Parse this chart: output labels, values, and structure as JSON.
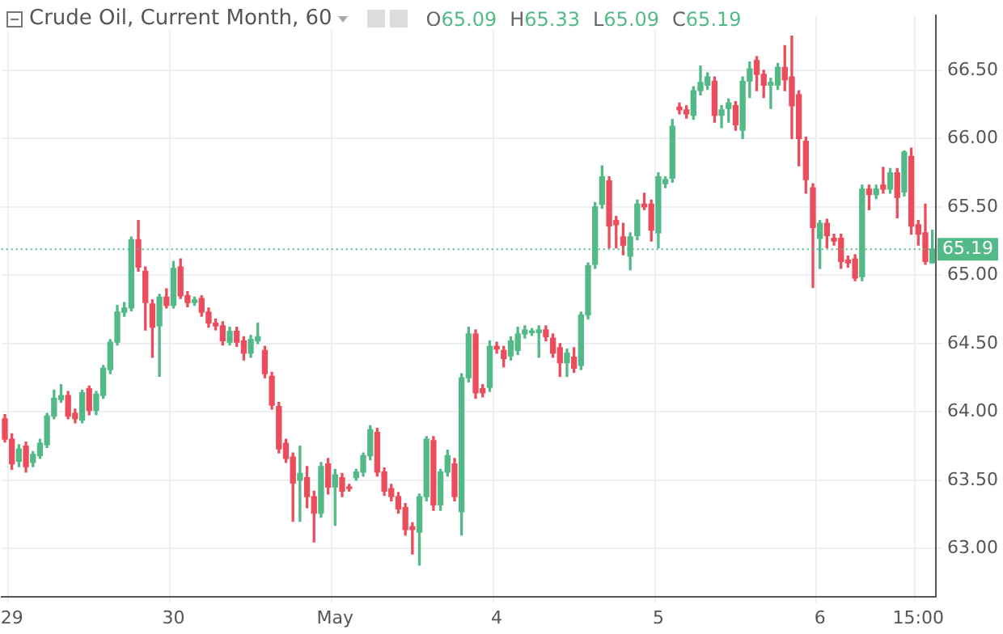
{
  "chart_data": {
    "type": "candlestick",
    "title": "Crude Oil, Current Month, 60",
    "annotations": [
      "O65.09",
      "H65.33",
      "L65.09",
      "C65.19"
    ],
    "categories": [
      null,
      "29",
      null,
      null,
      null,
      null,
      null,
      null,
      null,
      null,
      null,
      null,
      null,
      null,
      null,
      null,
      null,
      null,
      null,
      null,
      null,
      null,
      null,
      null,
      "30",
      null,
      null,
      null,
      null,
      null,
      null,
      null,
      null,
      null,
      null,
      null,
      null,
      null,
      null,
      null,
      null,
      null,
      null,
      null,
      null,
      null,
      null,
      "May",
      null,
      null,
      null,
      null,
      null,
      null,
      null,
      null,
      null,
      null,
      null,
      null,
      null,
      null,
      null,
      null,
      null,
      null,
      null,
      null,
      null,
      null,
      "4",
      null,
      null,
      null,
      null,
      null,
      null,
      null,
      null,
      null,
      null,
      null,
      null,
      null,
      null,
      null,
      null,
      null,
      null,
      null,
      null,
      null,
      null,
      "5",
      null,
      null,
      null,
      null,
      null,
      null,
      null,
      null,
      null,
      null,
      null,
      null,
      null,
      null,
      null,
      null,
      null,
      null,
      null,
      null,
      null,
      null,
      "6",
      null,
      null,
      null,
      null,
      null,
      null,
      null,
      null,
      null,
      null,
      null,
      null,
      null,
      "15:00",
      null,
      null
    ],
    "ohlc": [
      [
        63.95,
        63.98,
        63.78,
        63.8
      ],
      [
        63.8,
        63.84,
        63.58,
        63.62
      ],
      [
        63.64,
        63.76,
        63.6,
        63.73
      ],
      [
        63.75,
        63.78,
        63.56,
        63.6
      ],
      [
        63.63,
        63.71,
        63.6,
        63.69
      ],
      [
        63.68,
        63.8,
        63.66,
        63.77
      ],
      [
        63.76,
        63.99,
        63.74,
        63.97
      ],
      [
        63.97,
        64.16,
        63.95,
        64.1
      ],
      [
        64.09,
        64.2,
        64.07,
        64.12
      ],
      [
        64.12,
        64.15,
        63.95,
        63.97
      ],
      [
        63.99,
        64.02,
        63.92,
        63.95
      ],
      [
        63.94,
        64.16,
        63.92,
        64.14
      ],
      [
        64.17,
        64.19,
        63.98,
        64.01
      ],
      [
        64.01,
        64.15,
        63.98,
        64.13
      ],
      [
        64.12,
        64.34,
        64.1,
        64.32
      ],
      [
        64.31,
        64.53,
        64.28,
        64.51
      ],
      [
        64.51,
        64.78,
        64.49,
        64.73
      ],
      [
        64.73,
        64.8,
        64.7,
        64.76
      ],
      [
        64.76,
        65.28,
        64.74,
        65.26
      ],
      [
        65.26,
        65.4,
        65.03,
        65.06
      ],
      [
        65.03,
        65.06,
        64.6,
        64.8
      ],
      [
        64.79,
        64.82,
        64.4,
        64.62
      ],
      [
        64.63,
        64.86,
        64.26,
        64.84
      ],
      [
        64.84,
        64.9,
        64.76,
        64.78
      ],
      [
        64.78,
        65.1,
        64.76,
        65.05
      ],
      [
        65.06,
        65.12,
        64.83,
        64.85
      ],
      [
        64.85,
        64.88,
        64.77,
        64.8
      ],
      [
        64.8,
        64.84,
        64.78,
        64.82
      ],
      [
        64.83,
        64.85,
        64.7,
        64.73
      ],
      [
        64.73,
        64.76,
        64.62,
        64.65
      ],
      [
        64.65,
        64.68,
        64.6,
        64.63
      ],
      [
        64.63,
        64.66,
        64.49,
        64.52
      ],
      [
        64.51,
        64.62,
        64.49,
        64.59
      ],
      [
        64.59,
        64.62,
        64.48,
        64.51
      ],
      [
        64.52,
        64.55,
        64.38,
        64.43
      ],
      [
        64.43,
        64.56,
        64.4,
        64.53
      ],
      [
        64.52,
        64.65,
        64.5,
        64.55
      ],
      [
        64.45,
        64.48,
        64.25,
        64.28
      ],
      [
        64.26,
        64.29,
        64.02,
        64.05
      ],
      [
        64.04,
        64.07,
        63.7,
        63.73
      ],
      [
        63.77,
        63.8,
        63.63,
        63.66
      ],
      [
        63.67,
        63.7,
        63.2,
        63.48
      ],
      [
        63.5,
        63.75,
        63.2,
        63.55
      ],
      [
        63.52,
        63.6,
        63.3,
        63.38
      ],
      [
        63.38,
        63.42,
        63.05,
        63.26
      ],
      [
        63.26,
        63.63,
        63.23,
        63.6
      ],
      [
        63.62,
        63.66,
        63.4,
        63.45
      ],
      [
        63.45,
        63.58,
        63.17,
        63.54
      ],
      [
        63.52,
        63.55,
        63.38,
        63.42
      ],
      [
        63.45,
        63.47,
        63.42,
        63.44
      ],
      [
        63.52,
        63.58,
        63.5,
        63.56
      ],
      [
        63.56,
        63.7,
        63.53,
        63.68
      ],
      [
        63.68,
        63.9,
        63.65,
        63.87
      ],
      [
        63.85,
        63.88,
        63.53,
        63.56
      ],
      [
        63.56,
        63.59,
        63.39,
        63.42
      ],
      [
        63.44,
        63.47,
        63.35,
        63.38
      ],
      [
        63.38,
        63.41,
        63.26,
        63.29
      ],
      [
        63.3,
        63.33,
        63.1,
        63.14
      ],
      [
        63.16,
        63.19,
        62.96,
        63.14
      ],
      [
        63.12,
        63.4,
        62.88,
        63.38
      ],
      [
        63.38,
        63.82,
        63.35,
        63.8
      ],
      [
        63.79,
        63.82,
        63.28,
        63.32
      ],
      [
        63.32,
        63.58,
        63.28,
        63.56
      ],
      [
        63.56,
        63.72,
        63.53,
        63.68
      ],
      [
        63.62,
        63.66,
        63.35,
        63.38
      ],
      [
        63.27,
        64.28,
        63.1,
        64.25
      ],
      [
        64.25,
        64.62,
        64.22,
        64.57
      ],
      [
        64.57,
        64.6,
        64.1,
        64.14
      ],
      [
        64.17,
        64.2,
        64.11,
        64.14
      ],
      [
        64.18,
        64.52,
        64.15,
        64.48
      ],
      [
        64.48,
        64.51,
        64.43,
        64.46
      ],
      [
        64.45,
        64.48,
        64.33,
        64.39
      ],
      [
        64.41,
        64.55,
        64.38,
        64.52
      ],
      [
        64.45,
        64.62,
        64.42,
        64.57
      ],
      [
        64.57,
        64.63,
        64.54,
        64.6
      ],
      [
        64.58,
        64.61,
        64.56,
        64.59
      ],
      [
        64.58,
        64.63,
        64.4,
        64.6
      ],
      [
        64.6,
        64.63,
        64.52,
        64.55
      ],
      [
        64.54,
        64.57,
        64.4,
        64.43
      ],
      [
        64.47,
        64.5,
        64.26,
        64.36
      ],
      [
        64.36,
        64.46,
        64.26,
        64.43
      ],
      [
        64.4,
        64.47,
        64.29,
        64.32
      ],
      [
        64.34,
        64.73,
        64.31,
        64.71
      ],
      [
        64.71,
        65.09,
        64.68,
        65.07
      ],
      [
        65.08,
        65.53,
        65.05,
        65.5
      ],
      [
        65.52,
        65.8,
        65.49,
        65.72
      ],
      [
        65.69,
        65.72,
        65.2,
        65.36
      ],
      [
        65.4,
        65.43,
        65.2,
        65.37
      ],
      [
        65.28,
        65.38,
        65.15,
        65.22
      ],
      [
        65.14,
        65.31,
        65.04,
        65.28
      ],
      [
        65.29,
        65.55,
        65.26,
        65.52
      ],
      [
        65.52,
        65.6,
        65.48,
        65.5
      ],
      [
        65.52,
        65.55,
        65.25,
        65.33
      ],
      [
        65.31,
        65.75,
        65.2,
        65.72
      ],
      [
        65.67,
        65.72,
        65.64,
        65.7
      ],
      [
        65.71,
        66.14,
        65.68,
        66.09
      ],
      [
        66.23,
        66.26,
        66.18,
        66.21
      ],
      [
        66.21,
        66.24,
        66.15,
        66.18
      ],
      [
        66.17,
        66.38,
        66.14,
        66.35
      ],
      [
        66.35,
        66.53,
        66.32,
        66.41
      ],
      [
        66.39,
        66.48,
        66.36,
        66.45
      ],
      [
        66.42,
        66.45,
        66.12,
        66.17
      ],
      [
        66.17,
        66.24,
        66.08,
        66.21
      ],
      [
        66.22,
        66.29,
        66.12,
        66.26
      ],
      [
        66.24,
        66.27,
        66.06,
        66.1
      ],
      [
        66.06,
        66.45,
        66.0,
        66.42
      ],
      [
        66.42,
        66.56,
        66.3,
        66.51
      ],
      [
        66.57,
        66.6,
        66.35,
        66.47
      ],
      [
        66.47,
        66.5,
        66.3,
        66.39
      ],
      [
        66.39,
        66.44,
        66.22,
        66.41
      ],
      [
        66.39,
        66.55,
        66.36,
        66.52
      ],
      [
        66.52,
        66.68,
        66.35,
        66.43
      ],
      [
        66.45,
        66.75,
        66.0,
        66.24
      ],
      [
        66.32,
        66.35,
        65.8,
        66.0
      ],
      [
        65.98,
        66.01,
        65.6,
        65.7
      ],
      [
        65.64,
        65.67,
        64.91,
        65.35
      ],
      [
        65.27,
        65.4,
        65.05,
        65.38
      ],
      [
        65.38,
        65.41,
        65.2,
        65.29
      ],
      [
        65.27,
        65.3,
        65.22,
        65.25
      ],
      [
        65.27,
        65.3,
        65.05,
        65.1
      ],
      [
        65.11,
        65.14,
        65.06,
        65.09
      ],
      [
        65.12,
        65.15,
        64.96,
        64.98
      ],
      [
        64.99,
        65.66,
        64.96,
        65.63
      ],
      [
        65.63,
        65.66,
        65.48,
        65.59
      ],
      [
        65.59,
        65.66,
        65.56,
        65.63
      ],
      [
        65.66,
        65.79,
        65.6,
        65.63
      ],
      [
        65.63,
        65.78,
        65.6,
        65.75
      ],
      [
        65.75,
        65.78,
        65.42,
        65.57
      ],
      [
        65.61,
        65.91,
        65.58,
        65.9
      ],
      [
        65.87,
        65.93,
        65.3,
        65.36
      ],
      [
        65.37,
        65.4,
        65.22,
        65.3
      ],
      [
        65.31,
        65.52,
        65.08,
        65.1
      ],
      [
        65.09,
        65.33,
        65.09,
        65.19
      ]
    ],
    "colors": [
      "#eb4d5c",
      "#eb4d5c",
      "#53b987",
      "#eb4d5c",
      "#53b987",
      "#53b987",
      "#53b987",
      "#53b987",
      "#53b987",
      "#eb4d5c",
      "#eb4d5c",
      "#53b987",
      "#eb4d5c",
      "#53b987",
      "#53b987",
      "#53b987",
      "#53b987",
      "#53b987",
      "#53b987",
      "#eb4d5c",
      "#eb4d5c",
      "#eb4d5c",
      "#53b987",
      "#eb4d5c",
      "#53b987",
      "#eb4d5c",
      "#eb4d5c",
      "#53b987",
      "#eb4d5c",
      "#eb4d5c",
      "#eb4d5c",
      "#eb4d5c",
      "#53b987",
      "#eb4d5c",
      "#eb4d5c",
      "#53b987",
      "#53b987",
      "#eb4d5c",
      "#eb4d5c",
      "#eb4d5c",
      "#eb4d5c",
      "#eb4d5c",
      "#53b987",
      "#eb4d5c",
      "#eb4d5c",
      "#53b987",
      "#eb4d5c",
      "#53b987",
      "#eb4d5c",
      "#eb4d5c",
      "#53b987",
      "#53b987",
      "#53b987",
      "#eb4d5c",
      "#eb4d5c",
      "#eb4d5c",
      "#eb4d5c",
      "#eb4d5c",
      "#eb4d5c",
      "#53b987",
      "#53b987",
      "#eb4d5c",
      "#53b987",
      "#53b987",
      "#eb4d5c",
      "#53b987",
      "#53b987",
      "#eb4d5c",
      "#eb4d5c",
      "#53b987",
      "#eb4d5c",
      "#eb4d5c",
      "#53b987",
      "#53b987",
      "#53b987",
      "#53b987",
      "#53b987",
      "#eb4d5c",
      "#eb4d5c",
      "#eb4d5c",
      "#53b987",
      "#eb4d5c",
      "#53b987",
      "#53b987",
      "#53b987",
      "#53b987",
      "#eb4d5c",
      "#eb4d5c",
      "#eb4d5c",
      "#53b987",
      "#53b987",
      "#eb4d5c",
      "#eb4d5c",
      "#53b987",
      "#53b987",
      "#53b987",
      "#eb4d5c",
      "#eb4d5c",
      "#53b987",
      "#53b987",
      "#53b987",
      "#eb4d5c",
      "#53b987",
      "#53b987",
      "#eb4d5c",
      "#53b987",
      "#53b987",
      "#eb4d5c",
      "#eb4d5c",
      "#53b987",
      "#53b987",
      "#eb4d5c",
      "#eb4d5c",
      "#eb4d5c",
      "#eb4d5c",
      "#eb4d5c",
      "#53b987",
      "#eb4d5c",
      "#eb4d5c",
      "#eb4d5c",
      "#eb4d5c",
      "#eb4d5c",
      "#53b987",
      "#eb4d5c",
      "#53b987",
      "#eb4d5c",
      "#53b987",
      "#eb4d5c",
      "#53b987",
      "#eb4d5c",
      "#eb4d5c",
      "#eb4d5c",
      "#53b987"
    ],
    "ylim": [
      62.65,
      66.9
    ],
    "yticks": [
      {
        "value": 63,
        "label": "63.00"
      },
      {
        "value": 63.5,
        "label": "63.50"
      },
      {
        "value": 64,
        "label": "64.00"
      },
      {
        "value": 64.5,
        "label": "64.50"
      },
      {
        "value": 65,
        "label": "65.00"
      },
      {
        "value": 65.5,
        "label": "65.50"
      },
      {
        "value": 66,
        "label": "66.00"
      },
      {
        "value": 66.5,
        "label": "66.50"
      }
    ],
    "ref_lines": [
      {
        "axis": "y",
        "value": 65.19,
        "label": "65.19",
        "color": "#53b987",
        "line_style": "dotted"
      }
    ],
    "grid": true,
    "legend": false
  }
}
